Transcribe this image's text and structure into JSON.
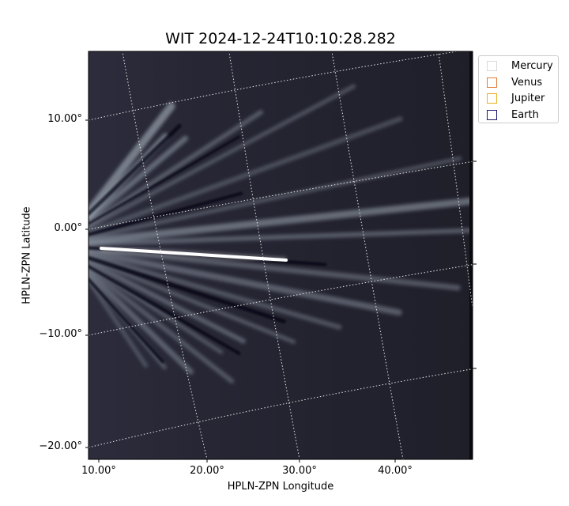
{
  "title": "WIT 2024-12-24T10:10:28.282",
  "axes": {
    "xlabel": "HPLN-ZPN Longitude",
    "ylabel": "HPLN-ZPN Latitude",
    "xticks": [
      "10.00°",
      "20.00°",
      "30.00°",
      "40.00°"
    ],
    "yticks": [
      "10.00°",
      "0.00°",
      "−10.00°",
      "−20.00°"
    ]
  },
  "legend": {
    "items": [
      {
        "label": "Mercury",
        "color": "#d9d9d9"
      },
      {
        "label": "Venus",
        "color": "#e07b39"
      },
      {
        "label": "Jupiter",
        "color": "#e8b020"
      },
      {
        "label": "Earth",
        "color": "#1a1a6e"
      }
    ]
  },
  "image": {
    "description_colormap": "bone",
    "background_color": "#22222e"
  }
}
